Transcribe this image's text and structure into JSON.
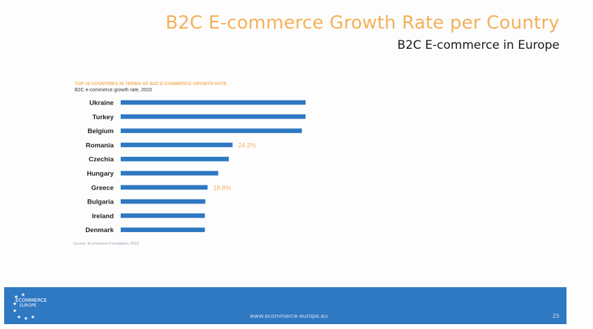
{
  "slide": {
    "title": "B2C E-commerce Growth Rate per Country",
    "subtitle": "B2C E-commerce in Europe",
    "source": "Source: Ecommerce Foundation, 2016",
    "footer_url": "www.ecommerce-europe.eu",
    "page_number": "25",
    "logo": {
      "line1": "ECOMMERCE",
      "line2": "EUROPE"
    }
  },
  "colors": {
    "bar": "#2f78c2",
    "accent": "#f4b05a",
    "footer": "#2f78c2"
  },
  "chart_data": {
    "type": "bar",
    "orientation": "horizontal",
    "title": "TOP 10 COUNTRIES IN TERMS OF B2C E-COMMERCE GROWTH RATE",
    "subtitle": "B2C e-commerce growth rate, 2015",
    "categories": [
      "Ukraine",
      "Turkey",
      "Belgium",
      "Romania",
      "Czechia",
      "Hungary",
      "Greece",
      "Bulgaria",
      "Ireland",
      "Denmark"
    ],
    "values": [
      40.0,
      40.0,
      39.2,
      24.2,
      23.4,
      21.1,
      18.8,
      18.3,
      18.2,
      18.2
    ],
    "data_labels": [
      null,
      null,
      null,
      "24.2%",
      null,
      null,
      "18.8%",
      null,
      null,
      null
    ],
    "xlim": [
      0,
      40
    ],
    "grid": false,
    "legend": "none"
  }
}
